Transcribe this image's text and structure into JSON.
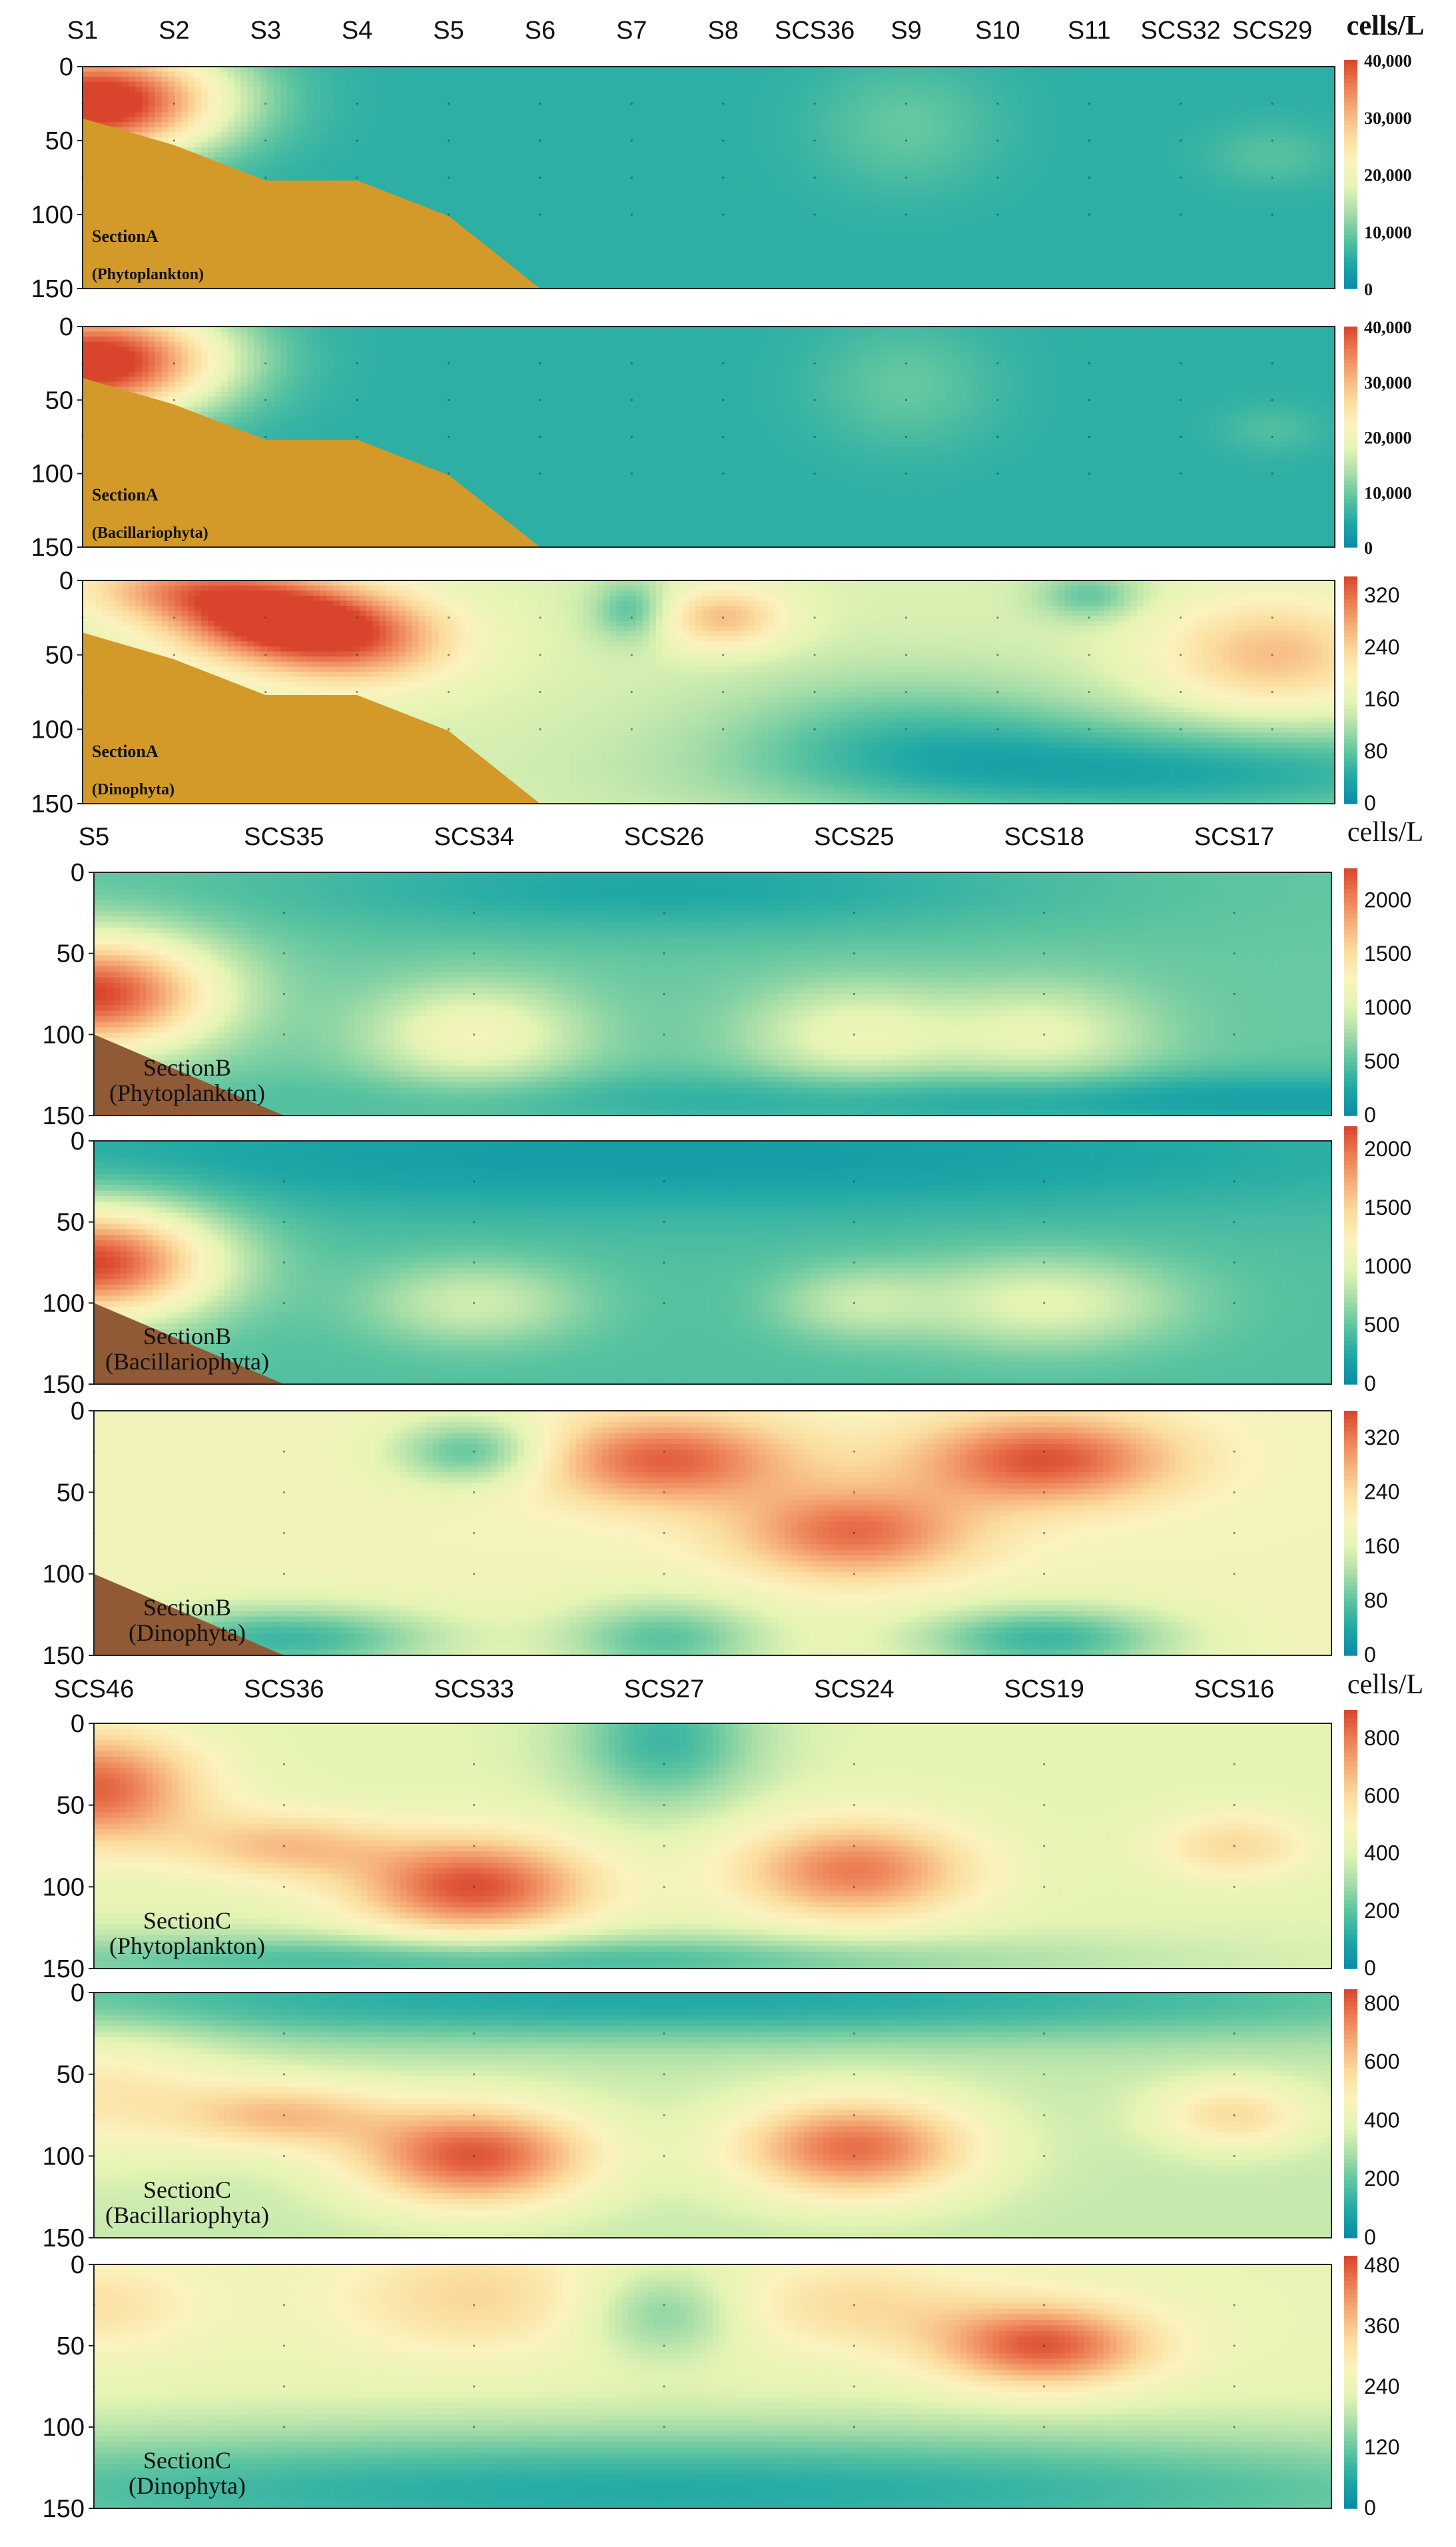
{
  "unit_label": "cells/L",
  "colorscale": [
    "#0a8aa6",
    "#1fa8a6",
    "#5cc4a0",
    "#a8dea8",
    "#e4f4b4",
    "#fbf3bf",
    "#fbdc9e",
    "#f6b07a",
    "#ec7d53",
    "#d9452c"
  ],
  "basin_color_A": "#d39a2a",
  "basin_color_B": "#8f5a35",
  "chart_data": [
    {
      "type": "heatmap",
      "section": "A",
      "name": "SectionA",
      "group": "Phytoplankton",
      "group_label": "(Phytoplankton)",
      "stations": [
        "S1",
        "S2",
        "S3",
        "S4",
        "S5",
        "S6",
        "S7",
        "S8",
        "SCS36",
        "S9",
        "S10",
        "S11",
        "SCS32",
        "SCS29"
      ],
      "depth_ticks": [
        "0",
        "50",
        "100",
        "150"
      ],
      "ylim": [
        0,
        150
      ],
      "colorbar": {
        "max": 40000,
        "ticks": [
          "40,000",
          "30,000",
          "20,000",
          "10,000",
          "0"
        ],
        "tick_values": [
          40000,
          30000,
          20000,
          10000,
          0
        ]
      },
      "background_value": 5500,
      "hotspots": [
        {
          "station_index": 0,
          "depth": 25,
          "value": 40000,
          "spread_x": 0.9,
          "spread_z": 28
        },
        {
          "station_index": 1,
          "depth": 20,
          "value": 14000,
          "spread_x": 0.8,
          "spread_z": 25
        },
        {
          "station_index": 9,
          "depth": 40,
          "value": 9500,
          "spread_x": 0.7,
          "spread_z": 30
        },
        {
          "station_index": 13,
          "depth": 60,
          "value": 8500,
          "spread_x": 0.5,
          "spread_z": 15
        }
      ]
    },
    {
      "type": "heatmap",
      "section": "A",
      "name": "SectionA",
      "group": "Bacillariophyta",
      "group_label": "(Bacillariophyta)",
      "stations": [
        "S1",
        "S2",
        "S3",
        "S4",
        "S5",
        "S6",
        "S7",
        "S8",
        "SCS36",
        "S9",
        "S10",
        "S11",
        "SCS32",
        "SCS29"
      ],
      "depth_ticks": [
        "0",
        "50",
        "100",
        "150"
      ],
      "ylim": [
        0,
        150
      ],
      "colorbar": {
        "max": 40000,
        "ticks": [
          "40,000",
          "30,000",
          "20,000",
          "10,000",
          "0"
        ],
        "tick_values": [
          40000,
          30000,
          20000,
          10000,
          0
        ]
      },
      "background_value": 5500,
      "hotspots": [
        {
          "station_index": 0,
          "depth": 25,
          "value": 40000,
          "spread_x": 0.9,
          "spread_z": 28
        },
        {
          "station_index": 1,
          "depth": 20,
          "value": 13000,
          "spread_x": 0.8,
          "spread_z": 25
        },
        {
          "station_index": 9,
          "depth": 40,
          "value": 9500,
          "spread_x": 0.7,
          "spread_z": 30
        },
        {
          "station_index": 13,
          "depth": 70,
          "value": 8000,
          "spread_x": 0.4,
          "spread_z": 12
        }
      ]
    },
    {
      "type": "heatmap",
      "section": "A",
      "name": "SectionA",
      "group": "Dinophyta",
      "group_label": "(Dinophyta)",
      "stations": [
        "S1",
        "S2",
        "S3",
        "S4",
        "S5",
        "S6",
        "S7",
        "S8",
        "SCS36",
        "S9",
        "S10",
        "S11",
        "SCS32",
        "SCS29"
      ],
      "depth_ticks": [
        "0",
        "50",
        "100",
        "150"
      ],
      "ylim": [
        0,
        150
      ],
      "colorbar": {
        "max": 350,
        "ticks": [
          "320",
          "240",
          "160",
          "80",
          "0"
        ],
        "tick_values": [
          320,
          240,
          160,
          80,
          0
        ]
      },
      "background_value": 150,
      "hotspots": [
        {
          "station_index": 2,
          "depth": 25,
          "value": 340,
          "spread_x": 0.8,
          "spread_z": 20
        },
        {
          "station_index": 3,
          "depth": 40,
          "value": 300,
          "spread_x": 0.8,
          "spread_z": 22
        },
        {
          "station_index": 1,
          "depth": 5,
          "value": 260,
          "spread_x": 0.8,
          "spread_z": 15
        },
        {
          "station_index": 7,
          "depth": 25,
          "value": 260,
          "spread_x": 0.5,
          "spread_z": 15
        },
        {
          "station_index": 13,
          "depth": 50,
          "value": 260,
          "spread_x": 0.9,
          "spread_z": 28
        },
        {
          "station_index": 6,
          "depth": 20,
          "value": 70,
          "spread_x": 0.3,
          "spread_z": 15
        },
        {
          "station_index": 11,
          "depth": 10,
          "value": 80,
          "spread_x": 0.4,
          "spread_z": 12
        },
        {
          "station_index": 9,
          "depth": 100,
          "value": 90,
          "spread_x": 1.5,
          "spread_z": 30
        },
        {
          "station_index": 12,
          "depth": 130,
          "value": 40,
          "spread_x": 3.0,
          "spread_z": 25
        }
      ]
    },
    {
      "type": "heatmap",
      "section": "B",
      "name": "SectionB",
      "group": "Phytoplankton",
      "group_label": "(Phytoplankton)",
      "stations": [
        "S5",
        "SCS35",
        "SCS34",
        "SCS26",
        "SCS25",
        "SCS18",
        "SCS17"
      ],
      "depth_ticks": [
        "0",
        "50",
        "100",
        "150"
      ],
      "ylim": [
        0,
        150
      ],
      "colorbar": {
        "max": 2300,
        "ticks": [
          "2000",
          "1500",
          "1000",
          "500",
          "0"
        ],
        "tick_values": [
          2000,
          1500,
          1000,
          500,
          0
        ]
      },
      "background_value": 550,
      "hotspots": [
        {
          "station_index": 0,
          "depth": 75,
          "value": 2300,
          "spread_x": 0.45,
          "spread_z": 25
        },
        {
          "station_index": 2,
          "depth": 100,
          "value": 1200,
          "spread_x": 0.4,
          "spread_z": 22
        },
        {
          "station_index": 4,
          "depth": 100,
          "value": 1100,
          "spread_x": 0.4,
          "spread_z": 22
        },
        {
          "station_index": 5,
          "depth": 100,
          "value": 1050,
          "spread_x": 0.4,
          "spread_z": 22
        },
        {
          "station_index": 3,
          "depth": 10,
          "value": 250,
          "spread_x": 1.5,
          "spread_z": 20
        },
        {
          "station_index": 6,
          "depth": 140,
          "value": 200,
          "spread_x": 3.0,
          "spread_z": 12
        }
      ]
    },
    {
      "type": "heatmap",
      "section": "B",
      "name": "SectionB",
      "group": "Bacillariophyta",
      "group_label": "(Bacillariophyta)",
      "stations": [
        "S5",
        "SCS35",
        "SCS34",
        "SCS26",
        "SCS25",
        "SCS18",
        "SCS17"
      ],
      "depth_ticks": [
        "0",
        "50",
        "100",
        "150"
      ],
      "ylim": [
        0,
        150
      ],
      "colorbar": {
        "max": 2200,
        "ticks": [
          "2000",
          "1500",
          "1000",
          "500",
          "0"
        ],
        "tick_values": [
          2000,
          1500,
          1000,
          500,
          0
        ]
      },
      "background_value": 450,
      "hotspots": [
        {
          "station_index": 0,
          "depth": 75,
          "value": 2200,
          "spread_x": 0.45,
          "spread_z": 25
        },
        {
          "station_index": 2,
          "depth": 100,
          "value": 900,
          "spread_x": 0.4,
          "spread_z": 18
        },
        {
          "station_index": 5,
          "depth": 100,
          "value": 1000,
          "spread_x": 0.5,
          "spread_z": 20
        },
        {
          "station_index": 4,
          "depth": 100,
          "value": 800,
          "spread_x": 0.3,
          "spread_z": 16
        },
        {
          "station_index": 3,
          "depth": 10,
          "value": 150,
          "spread_x": 3.0,
          "spread_z": 25
        }
      ]
    },
    {
      "type": "heatmap",
      "section": "B",
      "name": "SectionB",
      "group": "Dinophyta",
      "group_label": "(Dinophyta)",
      "stations": [
        "S5",
        "SCS35",
        "SCS34",
        "SCS26",
        "SCS25",
        "SCS18",
        "SCS17"
      ],
      "depth_ticks": [
        "0",
        "50",
        "100",
        "150"
      ],
      "ylim": [
        0,
        150
      ],
      "colorbar": {
        "max": 360,
        "ticks": [
          "320",
          "240",
          "160",
          "80",
          "0"
        ],
        "tick_values": [
          320,
          240,
          160,
          80,
          0
        ]
      },
      "background_value": 185,
      "hotspots": [
        {
          "station_index": 3,
          "depth": 30,
          "value": 340,
          "spread_x": 0.5,
          "spread_z": 20
        },
        {
          "station_index": 4,
          "depth": 75,
          "value": 330,
          "spread_x": 0.45,
          "spread_z": 20
        },
        {
          "station_index": 5,
          "depth": 30,
          "value": 350,
          "spread_x": 0.5,
          "spread_z": 20
        },
        {
          "station_index": 2,
          "depth": 25,
          "value": 70,
          "spread_x": 0.3,
          "spread_z": 15
        },
        {
          "station_index": 1,
          "depth": 140,
          "value": 60,
          "spread_x": 0.6,
          "spread_z": 15
        },
        {
          "station_index": 3,
          "depth": 140,
          "value": 80,
          "spread_x": 0.4,
          "spread_z": 18
        },
        {
          "station_index": 5,
          "depth": 140,
          "value": 60,
          "spread_x": 0.5,
          "spread_z": 15
        }
      ]
    },
    {
      "type": "heatmap",
      "section": "C",
      "name": "SectionC",
      "group": "Phytoplankton",
      "group_label": "(Phytoplankton)",
      "stations": [
        "SCS46",
        "SCS36",
        "SCS33",
        "SCS27",
        "SCS24",
        "SCS19",
        "SCS16"
      ],
      "depth_ticks": [
        "0",
        "50",
        "100",
        "150"
      ],
      "ylim": [
        0,
        150
      ],
      "colorbar": {
        "max": 900,
        "ticks": [
          "800",
          "600",
          "400",
          "200",
          "0"
        ],
        "tick_values": [
          800,
          600,
          400,
          200,
          0
        ]
      },
      "background_value": 400,
      "hotspots": [
        {
          "station_index": 0,
          "depth": 40,
          "value": 850,
          "spread_x": 0.4,
          "spread_z": 25
        },
        {
          "station_index": 2,
          "depth": 100,
          "value": 880,
          "spread_x": 0.45,
          "spread_z": 22
        },
        {
          "station_index": 4,
          "depth": 90,
          "value": 800,
          "spread_x": 0.45,
          "spread_z": 22
        },
        {
          "station_index": 1,
          "depth": 75,
          "value": 650,
          "spread_x": 0.4,
          "spread_z": 15
        },
        {
          "station_index": 6,
          "depth": 75,
          "value": 600,
          "spread_x": 0.3,
          "spread_z": 15
        },
        {
          "station_index": 3,
          "depth": 10,
          "value": 150,
          "spread_x": 0.35,
          "spread_z": 30
        },
        {
          "station_index": 2,
          "depth": 145,
          "value": 150,
          "spread_x": 2.0,
          "spread_z": 12
        }
      ]
    },
    {
      "type": "heatmap",
      "section": "C",
      "name": "SectionC",
      "group": "Bacillariophyta",
      "group_label": "(Bacillariophyta)",
      "stations": [
        "SCS46",
        "SCS36",
        "SCS33",
        "SCS27",
        "SCS24",
        "SCS19",
        "SCS16"
      ],
      "depth_ticks": [
        "0",
        "50",
        "100",
        "150"
      ],
      "ylim": [
        0,
        150
      ],
      "colorbar": {
        "max": 850,
        "ticks": [
          "800",
          "600",
          "400",
          "200",
          "0"
        ],
        "tick_values": [
          800,
          600,
          400,
          200,
          0
        ]
      },
      "background_value": 330,
      "hotspots": [
        {
          "station_index": 2,
          "depth": 100,
          "value": 820,
          "spread_x": 0.45,
          "spread_z": 22
        },
        {
          "station_index": 4,
          "depth": 95,
          "value": 780,
          "spread_x": 0.45,
          "spread_z": 22
        },
        {
          "station_index": 1,
          "depth": 75,
          "value": 600,
          "spread_x": 0.4,
          "spread_z": 15
        },
        {
          "station_index": 0,
          "depth": 60,
          "value": 520,
          "spread_x": 0.5,
          "spread_z": 30
        },
        {
          "station_index": 6,
          "depth": 75,
          "value": 560,
          "spread_x": 0.3,
          "spread_z": 15
        },
        {
          "station_index": 3,
          "depth": 5,
          "value": 100,
          "spread_x": 3.5,
          "spread_z": 18
        }
      ]
    },
    {
      "type": "heatmap",
      "section": "C",
      "name": "SectionC",
      "group": "Dinophyta",
      "group_label": "(Dinophyta)",
      "stations": [
        "SCS46",
        "SCS36",
        "SCS33",
        "SCS27",
        "SCS24",
        "SCS19",
        "SCS16"
      ],
      "depth_ticks": [
        "0",
        "50",
        "100",
        "150"
      ],
      "ylim": [
        0,
        150
      ],
      "colorbar": {
        "max": 500,
        "ticks": [
          "480",
          "360",
          "240",
          "120",
          "0"
        ],
        "tick_values": [
          480,
          360,
          240,
          120,
          0
        ]
      },
      "background_value": 240,
      "hotspots": [
        {
          "station_index": 5,
          "depth": 50,
          "value": 480,
          "spread_x": 0.4,
          "spread_z": 18
        },
        {
          "station_index": 2,
          "depth": 20,
          "value": 340,
          "spread_x": 0.5,
          "spread_z": 25
        },
        {
          "station_index": 4,
          "depth": 25,
          "value": 330,
          "spread_x": 0.5,
          "spread_z": 20
        },
        {
          "station_index": 0,
          "depth": 25,
          "value": 320,
          "spread_x": 0.4,
          "spread_z": 20
        },
        {
          "station_index": 3,
          "depth": 30,
          "value": 130,
          "spread_x": 0.3,
          "spread_z": 20
        },
        {
          "station_index": 3,
          "depth": 140,
          "value": 60,
          "spread_x": 4.0,
          "spread_z": 30
        }
      ]
    }
  ]
}
